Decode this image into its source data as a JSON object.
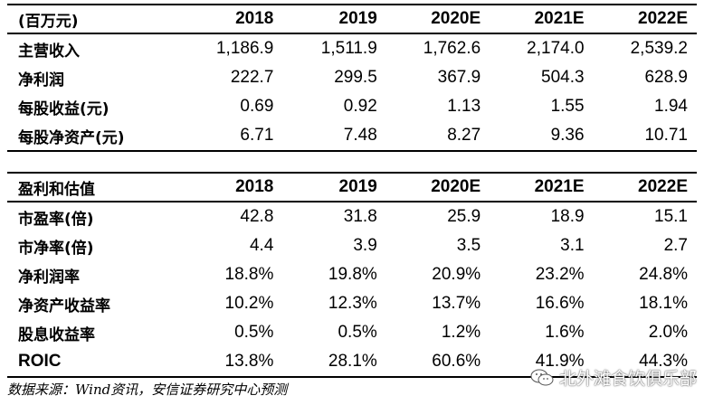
{
  "table1": {
    "header": [
      "(百万元)",
      "2018",
      "2019",
      "2020E",
      "2021E",
      "2022E"
    ],
    "rows": [
      {
        "label": "主营收入",
        "values": [
          "1,186.9",
          "1,511.9",
          "1,762.6",
          "2,174.0",
          "2,539.2"
        ]
      },
      {
        "label": "净利润",
        "values": [
          "222.7",
          "299.5",
          "367.9",
          "504.3",
          "628.9"
        ]
      },
      {
        "label": "每股收益(元)",
        "values": [
          "0.69",
          "0.92",
          "1.13",
          "1.55",
          "1.94"
        ]
      },
      {
        "label": "每股净资产(元)",
        "values": [
          "6.71",
          "7.48",
          "8.27",
          "9.36",
          "10.71"
        ]
      }
    ]
  },
  "table2": {
    "header": [
      "盈利和估值",
      "2018",
      "2019",
      "2020E",
      "2021E",
      "2022E"
    ],
    "rows": [
      {
        "label": "市盈率(倍)",
        "values": [
          "42.8",
          "31.8",
          "25.9",
          "18.9",
          "15.1"
        ]
      },
      {
        "label": "市净率(倍)",
        "values": [
          "4.4",
          "3.9",
          "3.5",
          "3.1",
          "2.7"
        ]
      },
      {
        "label": "净利润率",
        "values": [
          "18.8%",
          "19.8%",
          "20.9%",
          "23.2%",
          "24.8%"
        ]
      },
      {
        "label": "净资产收益率",
        "values": [
          "10.2%",
          "12.3%",
          "13.7%",
          "16.6%",
          "18.1%"
        ]
      },
      {
        "label": "股息收益率",
        "values": [
          "0.5%",
          "0.5%",
          "1.2%",
          "1.6%",
          "2.0%"
        ]
      },
      {
        "label": "ROIC",
        "values": [
          "13.8%",
          "28.1%",
          "60.6%",
          "41.9%",
          "44.3%"
        ]
      }
    ]
  },
  "source": "数据来源：Wind资讯，安信证券研究中心预测",
  "watermark": {
    "text": "北外滩食饮俱乐部",
    "icon": "wechat-icon"
  }
}
